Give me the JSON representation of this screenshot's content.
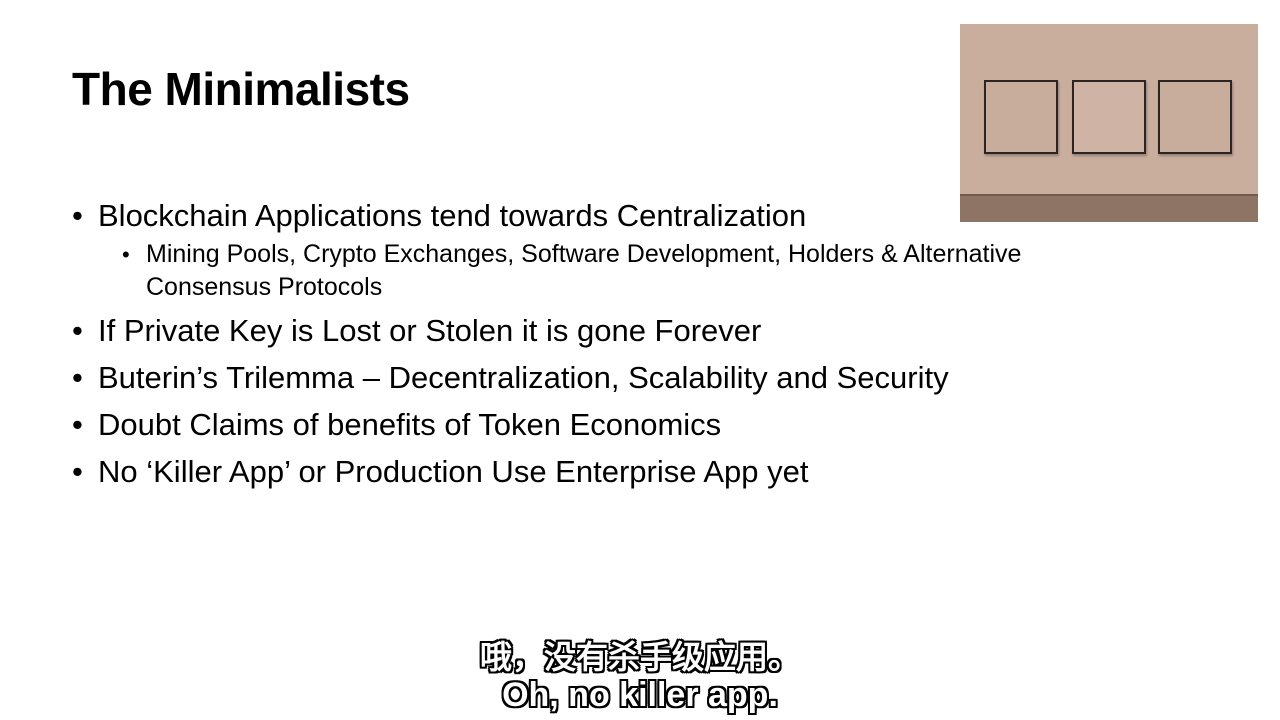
{
  "slide": {
    "title": "The Minimalists",
    "bullets": [
      {
        "text": "Blockchain Applications tend towards Centralization",
        "sub": [
          "Mining Pools, Crypto Exchanges, Software Development, Holders & Alternative Consensus Protocols"
        ]
      },
      {
        "text": "If Private Key is Lost or Stolen it is gone Forever"
      },
      {
        "text": "Buterin’s Trilemma – Decentralization, Scalability and Security"
      },
      {
        "text": "Doubt Claims of benefits of Token Economics"
      },
      {
        "text": "No ‘Killer App’ or Production Use Enterprise App yet"
      }
    ],
    "bullet_glyph": "•"
  },
  "subtitles": {
    "chinese": "哦，没有杀手级应用。",
    "english": "Oh, no killer app."
  },
  "colors": {
    "background": "#ffffff",
    "text": "#000000",
    "wall": "#c9ad9d",
    "floor": "#8e7464"
  }
}
